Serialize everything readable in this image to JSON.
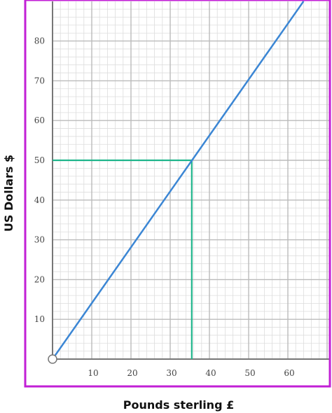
{
  "chart_data": {
    "type": "line",
    "xlabel": "Pounds sterling £",
    "ylabel": "US Dollars $",
    "xlim": [
      0,
      70
    ],
    "ylim": [
      0,
      90
    ],
    "xticks": [
      10,
      20,
      30,
      40,
      50,
      60
    ],
    "yticks": [
      10,
      20,
      30,
      40,
      50,
      60,
      70,
      80
    ],
    "grid": true,
    "series": [
      {
        "x": [
          0,
          64
        ],
        "y": [
          0,
          90
        ]
      }
    ],
    "annotations": [
      {
        "type": "reading-guide",
        "x": 35.5,
        "y": 50
      }
    ],
    "colors": {
      "frame": "#c21fd6",
      "line": "#3b86d4",
      "guide": "#1fb58b",
      "grid_minor": "#dddddd",
      "grid_major": "#bbbbbb",
      "axis": "#777777"
    }
  }
}
